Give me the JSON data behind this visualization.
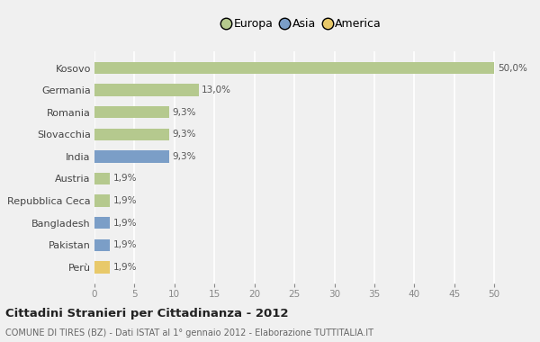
{
  "categories": [
    "Kosovo",
    "Germania",
    "Romania",
    "Slovacchia",
    "India",
    "Austria",
    "Repubblica Ceca",
    "Bangladesh",
    "Pakistan",
    "Perù"
  ],
  "values": [
    50.0,
    13.0,
    9.3,
    9.3,
    9.3,
    1.9,
    1.9,
    1.9,
    1.9,
    1.9
  ],
  "labels": [
    "50,0%",
    "13,0%",
    "9,3%",
    "9,3%",
    "9,3%",
    "1,9%",
    "1,9%",
    "1,9%",
    "1,9%",
    "1,9%"
  ],
  "colors": [
    "#b5c98e",
    "#b5c98e",
    "#b5c98e",
    "#b5c98e",
    "#7b9ec7",
    "#b5c98e",
    "#b5c98e",
    "#7b9ec7",
    "#7b9ec7",
    "#e8c96a"
  ],
  "legend_labels": [
    "Europa",
    "Asia",
    "America"
  ],
  "legend_colors": [
    "#b5c98e",
    "#7b9ec7",
    "#e8c96a"
  ],
  "title": "Cittadini Stranieri per Cittadinanza - 2012",
  "subtitle": "COMUNE DI TIRES (BZ) - Dati ISTAT al 1° gennaio 2012 - Elaborazione TUTTITALIA.IT",
  "xlim": [
    0,
    52
  ],
  "xticks": [
    0,
    5,
    10,
    15,
    20,
    25,
    30,
    35,
    40,
    45,
    50
  ],
  "background_color": "#f0f0f0",
  "grid_color": "#ffffff",
  "bar_height": 0.55
}
